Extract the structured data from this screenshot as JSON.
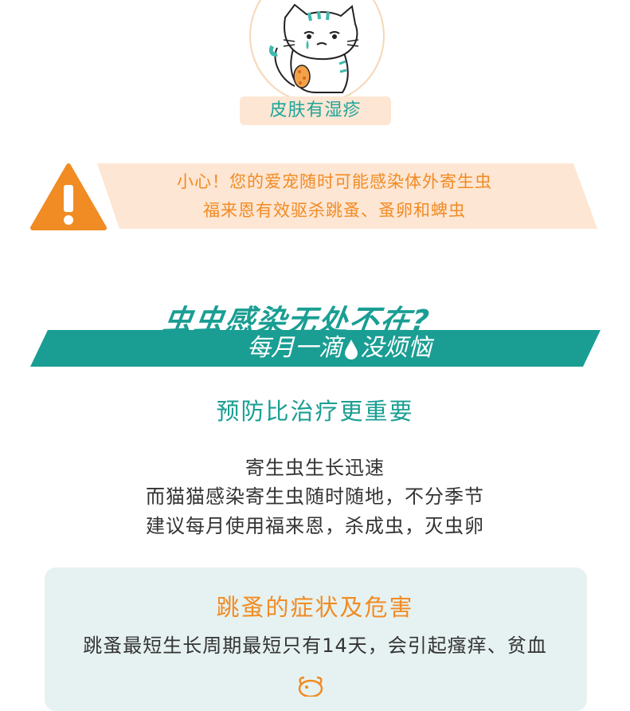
{
  "header": {
    "tag_label": "皮肤有湿疹"
  },
  "warning": {
    "line1": "小心！您的爱宠随时可能感染体外寄生虫",
    "line2": "福来恩有效驱杀跳蚤、蚤卵和蜱虫"
  },
  "hero": {
    "title": "虫虫感染无处不在?",
    "band_left": "每月一滴",
    "band_right": "没烦恼"
  },
  "prevention": {
    "title": "预防比治疗更重要",
    "lines": [
      "寄生虫生长迅速",
      "而猫猫感染寄生虫随时随地，不分季节",
      "建议每月使用福来恩，杀成虫，灭虫卵"
    ]
  },
  "flea_panel": {
    "title": "跳蚤的症状及危害",
    "text": "跳蚤最短生长周期最短只有14天，会引起瘙痒、贫血"
  },
  "colors": {
    "teal": "#1a9e93",
    "orange": "#f18b24",
    "peach": "#fde6d3",
    "panel_bg": "#e6f2f1"
  },
  "icons": [
    "crying-cat-illustration",
    "warning-icon",
    "water-drop-icon",
    "flea-icon"
  ]
}
